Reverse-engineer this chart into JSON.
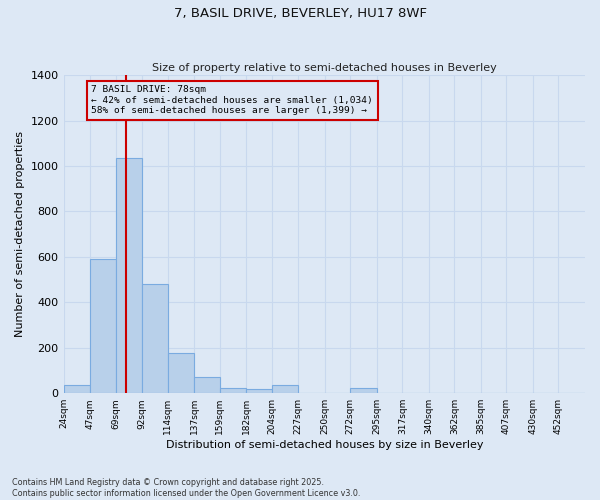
{
  "title_line1": "7, BASIL DRIVE, BEVERLEY, HU17 8WF",
  "title_line2": "Size of property relative to semi-detached houses in Beverley",
  "xlabel": "Distribution of semi-detached houses by size in Beverley",
  "ylabel": "Number of semi-detached properties",
  "bin_edges": [
    24,
    47,
    69,
    92,
    114,
    137,
    159,
    182,
    204,
    227,
    250,
    272,
    295,
    317,
    340,
    362,
    385,
    407,
    430,
    452,
    475
  ],
  "counts": [
    35,
    590,
    1035,
    480,
    175,
    70,
    25,
    20,
    35,
    0,
    0,
    25,
    0,
    0,
    0,
    0,
    0,
    0,
    0,
    0
  ],
  "bar_color": "#b8d0ea",
  "bar_edge_color": "#7aabe0",
  "bg_color": "#dde8f5",
  "grid_color": "#c8d8ee",
  "vline_x": 78,
  "vline_color": "#cc0000",
  "annotation_text": "7 BASIL DRIVE: 78sqm\n← 42% of semi-detached houses are smaller (1,034)\n58% of semi-detached houses are larger (1,399) →",
  "annotation_box_color": "#cc0000",
  "ylim": [
    0,
    1400
  ],
  "yticks": [
    0,
    200,
    400,
    600,
    800,
    1000,
    1200,
    1400
  ],
  "footnote1": "Contains HM Land Registry data © Crown copyright and database right 2025.",
  "footnote2": "Contains public sector information licensed under the Open Government Licence v3.0."
}
